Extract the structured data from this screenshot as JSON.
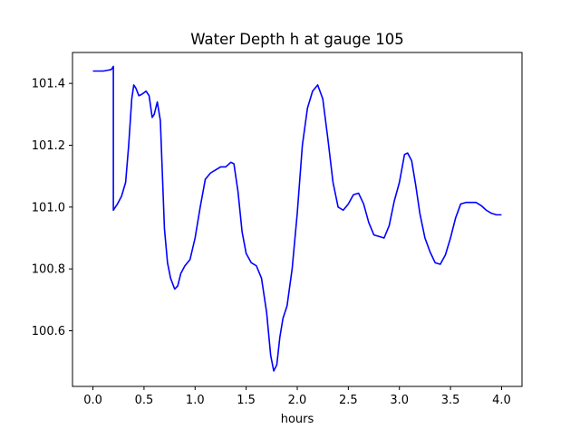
{
  "chart_data": {
    "type": "line",
    "title": "Water Depth h at gauge 105",
    "xlabel": "hours",
    "ylabel": "",
    "xlim": [
      -0.2,
      4.2
    ],
    "ylim": [
      100.42,
      101.5
    ],
    "xticks": [
      0.0,
      0.5,
      1.0,
      1.5,
      2.0,
      2.5,
      3.0,
      3.5,
      4.0
    ],
    "xtick_labels": [
      "0.0",
      "0.5",
      "1.0",
      "1.5",
      "2.0",
      "2.5",
      "3.0",
      "3.5",
      "4.0"
    ],
    "yticks": [
      100.6,
      100.8,
      101.0,
      101.2,
      101.4
    ],
    "ytick_labels": [
      "100.6",
      "100.8",
      "101.0",
      "101.2",
      "101.4"
    ],
    "grid": false,
    "series": [
      {
        "color": "#0000ff",
        "x": [
          0.0,
          0.1,
          0.15,
          0.18,
          0.2,
          0.2,
          0.24,
          0.28,
          0.32,
          0.35,
          0.38,
          0.4,
          0.42,
          0.45,
          0.48,
          0.52,
          0.55,
          0.58,
          0.6,
          0.63,
          0.66,
          0.7,
          0.73,
          0.76,
          0.8,
          0.83,
          0.86,
          0.9,
          0.95,
          1.0,
          1.05,
          1.1,
          1.15,
          1.2,
          1.25,
          1.3,
          1.35,
          1.38,
          1.42,
          1.46,
          1.5,
          1.55,
          1.6,
          1.65,
          1.7,
          1.74,
          1.77,
          1.8,
          1.83,
          1.86,
          1.9,
          1.95,
          2.0,
          2.05,
          2.1,
          2.15,
          2.2,
          2.25,
          2.3,
          2.35,
          2.4,
          2.45,
          2.5,
          2.55,
          2.6,
          2.65,
          2.7,
          2.75,
          2.8,
          2.85,
          2.9,
          2.95,
          3.0,
          3.05,
          3.08,
          3.12,
          3.16,
          3.2,
          3.25,
          3.3,
          3.35,
          3.4,
          3.45,
          3.5,
          3.55,
          3.6,
          3.65,
          3.7,
          3.75,
          3.8,
          3.85,
          3.9,
          3.95,
          4.0
        ],
        "y": [
          101.44,
          101.44,
          101.443,
          101.445,
          101.455,
          100.99,
          101.01,
          101.035,
          101.08,
          101.2,
          101.35,
          101.395,
          101.385,
          101.36,
          101.365,
          101.375,
          101.36,
          101.29,
          101.3,
          101.34,
          101.28,
          100.93,
          100.82,
          100.77,
          100.735,
          100.745,
          100.785,
          100.81,
          100.83,
          100.9,
          101.0,
          101.09,
          101.11,
          101.12,
          101.13,
          101.13,
          101.145,
          101.14,
          101.05,
          100.92,
          100.85,
          100.82,
          100.81,
          100.77,
          100.66,
          100.52,
          100.47,
          100.49,
          100.58,
          100.64,
          100.68,
          100.8,
          100.98,
          101.2,
          101.32,
          101.375,
          101.395,
          101.35,
          101.22,
          101.08,
          101.0,
          100.99,
          101.01,
          101.04,
          101.045,
          101.01,
          100.95,
          100.91,
          100.905,
          100.9,
          100.94,
          101.02,
          101.08,
          101.17,
          101.175,
          101.15,
          101.07,
          100.98,
          100.9,
          100.855,
          100.82,
          100.815,
          100.845,
          100.9,
          100.965,
          101.01,
          101.015,
          101.015,
          101.015,
          101.005,
          100.99,
          100.98,
          100.975,
          100.975
        ]
      }
    ]
  }
}
